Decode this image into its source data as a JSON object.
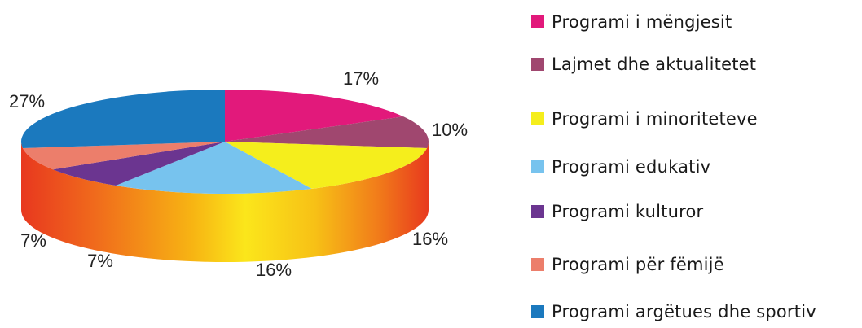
{
  "chart_data": {
    "type": "pie",
    "style": "3d",
    "categories": [
      "Programi i mëngjesit",
      "Lajmet dhe aktualitetet",
      "Programi i minoriteteve",
      "Programi edukativ",
      "Programi kulturor",
      "Programi për fëmijë",
      "Programi argëtues dhe sportiv"
    ],
    "values": [
      17,
      10,
      16,
      16,
      7,
      7,
      27
    ],
    "labels": [
      "17%",
      "10%",
      "16%",
      "16%",
      "7%",
      "7%",
      "27%"
    ],
    "colors": [
      "#e2197b",
      "#a0476f",
      "#f5ee1c",
      "#77c3ee",
      "#6b3590",
      "#ec7e6b",
      "#1b79be"
    ],
    "legend_placement": "right",
    "title": ""
  }
}
